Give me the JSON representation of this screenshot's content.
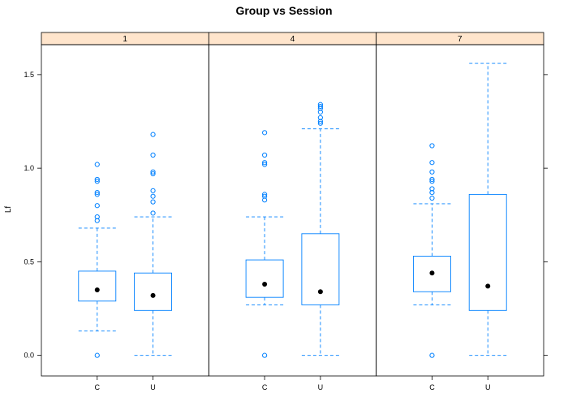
{
  "chart_data": {
    "type": "boxplot",
    "title": "Group vs Session",
    "ylabel": "Lf",
    "xlabel": "",
    "ylim": [
      -0.11,
      1.66
    ],
    "y_ticks": [
      "0.0",
      "0.5",
      "1.0",
      "1.5"
    ],
    "categories": [
      "C",
      "U"
    ],
    "strip_color": "#ffe5cc",
    "box_color": "#0080ff",
    "median_color": "#000000",
    "panels": [
      {
        "strip_label": "1",
        "boxes": [
          {
            "category": "C",
            "lower_whisker": 0.13,
            "q1": 0.29,
            "median": 0.35,
            "q3": 0.45,
            "upper_whisker": 0.68,
            "outliers": [
              0.0,
              0.72,
              0.74,
              0.8,
              0.86,
              0.87,
              0.93,
              0.94,
              1.02
            ]
          },
          {
            "category": "U",
            "lower_whisker": 0.0,
            "q1": 0.24,
            "median": 0.32,
            "q3": 0.44,
            "upper_whisker": 0.74,
            "outliers": [
              0.76,
              0.82,
              0.85,
              0.88,
              0.97,
              0.98,
              1.07,
              1.18
            ]
          }
        ]
      },
      {
        "strip_label": "4",
        "boxes": [
          {
            "category": "C",
            "lower_whisker": 0.27,
            "q1": 0.31,
            "median": 0.38,
            "q3": 0.51,
            "upper_whisker": 0.74,
            "outliers": [
              0.0,
              0.83,
              0.85,
              0.86,
              1.02,
              1.03,
              1.07,
              1.19
            ]
          },
          {
            "category": "U",
            "lower_whisker": 0.0,
            "q1": 0.27,
            "median": 0.34,
            "q3": 0.65,
            "upper_whisker": 1.21,
            "outliers": [
              1.24,
              1.25,
              1.27,
              1.3,
              1.32,
              1.33,
              1.34
            ]
          }
        ]
      },
      {
        "strip_label": "7",
        "boxes": [
          {
            "category": "C",
            "lower_whisker": 0.27,
            "q1": 0.34,
            "median": 0.44,
            "q3": 0.53,
            "upper_whisker": 0.81,
            "outliers": [
              0.0,
              0.84,
              0.87,
              0.89,
              0.93,
              0.94,
              0.98,
              1.03,
              1.12
            ]
          },
          {
            "category": "U",
            "lower_whisker": 0.0,
            "q1": 0.24,
            "median": 0.37,
            "q3": 0.86,
            "upper_whisker": 1.56,
            "outliers": []
          }
        ]
      }
    ]
  }
}
